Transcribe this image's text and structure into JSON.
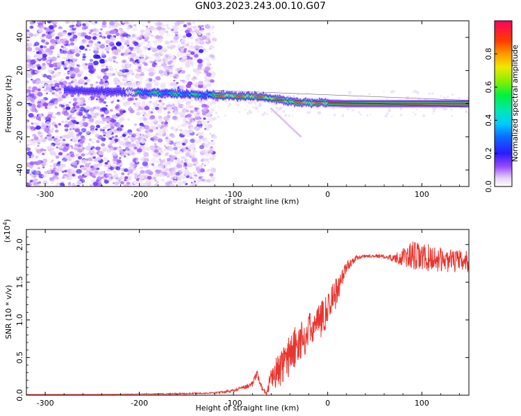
{
  "figure_title": "GN03.2023.243.00.10.G07",
  "chart_data": [
    {
      "type": "heatmap",
      "title": "",
      "xlabel": "Height of straight line (km)",
      "ylabel": "Frequency (Hz)",
      "xlim": [
        -320,
        150
      ],
      "ylim": [
        -50,
        50
      ],
      "xticks": [
        -300,
        -200,
        -100,
        0,
        100
      ],
      "yticks": [
        -40,
        -20,
        0,
        20,
        40
      ],
      "grid": false,
      "colorbar": {
        "label": "Normalized spectral amplitude",
        "range": [
          0.0,
          1.0
        ],
        "ticks": [
          "0.0",
          "0.2",
          "0.4",
          "0.6",
          "0.8"
        ],
        "colormap": "rainbow"
      },
      "ridge": {
        "description_points": [
          {
            "x": -275,
            "y": 8
          },
          {
            "x": -210,
            "y": 7
          },
          {
            "x": -160,
            "y": 6
          },
          {
            "x": -120,
            "y": 5
          },
          {
            "x": -90,
            "y": 4.5
          },
          {
            "x": -70,
            "y": 4
          },
          {
            "x": -55,
            "y": 2.5
          },
          {
            "x": -35,
            "y": 1
          },
          {
            "x": -10,
            "y": 0.5
          },
          {
            "x": 20,
            "y": 0
          },
          {
            "x": 150,
            "y": 0
          }
        ],
        "noise_region_x": [
          -320,
          -120
        ]
      }
    },
    {
      "type": "line",
      "title": "",
      "xlabel": "Height of straight line (km)",
      "ylabel": "SNR (10 * v/v)",
      "y_multiplier": "(x10^4)",
      "xlim": [
        -320,
        150
      ],
      "ylim": [
        0,
        2.2
      ],
      "xticks": [
        -300,
        -200,
        -100,
        0,
        100
      ],
      "yticks": [
        "0.0",
        "0.5",
        "1.0",
        "1.5",
        "2.0"
      ],
      "color": "#e8352e",
      "grid": false,
      "series": [
        {
          "x": [
            -320,
            -250,
            -200,
            -150,
            -120,
            -100,
            -90,
            -80,
            -75,
            -70,
            -65,
            -60,
            -50,
            -40,
            -30,
            -20,
            -10,
            0,
            10,
            20,
            30,
            40,
            50,
            60,
            70,
            80,
            90,
            100,
            110,
            120,
            130,
            140,
            150
          ],
          "values": [
            0.01,
            0.01,
            0.015,
            0.02,
            0.03,
            0.06,
            0.1,
            0.15,
            0.28,
            0.1,
            0.02,
            0.25,
            0.35,
            0.55,
            0.7,
            0.85,
            0.95,
            1.15,
            1.4,
            1.7,
            1.82,
            1.85,
            1.85,
            1.84,
            1.82,
            1.83,
            1.85,
            1.82,
            1.82,
            1.8,
            1.78,
            1.78,
            1.77
          ],
          "noise_amplitude": [
            0.0,
            0.0,
            0.005,
            0.01,
            0.01,
            0.02,
            0.03,
            0.04,
            0.05,
            0.03,
            0.02,
            0.15,
            0.2,
            0.25,
            0.22,
            0.2,
            0.2,
            0.2,
            0.18,
            0.08,
            0.03,
            0.02,
            0.02,
            0.03,
            0.05,
            0.12,
            0.2,
            0.2,
            0.18,
            0.16,
            0.15,
            0.15,
            0.15
          ]
        }
      ]
    }
  ]
}
